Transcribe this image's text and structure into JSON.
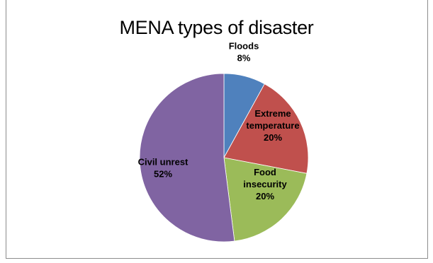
{
  "chart_data": {
    "type": "pie",
    "title": "MENA types of disaster",
    "slices": [
      {
        "label": "Floods",
        "percent_label": "8%",
        "value": 8,
        "color": "#4f81bd",
        "label_color": "#000000"
      },
      {
        "label": "Extreme temperature",
        "label_lines": [
          "Extreme",
          "temperature"
        ],
        "percent_label": "20%",
        "value": 20,
        "color": "#c0504d",
        "label_color": "#000000"
      },
      {
        "label": "Food insecurity",
        "label_lines": [
          "Food",
          "insecurity"
        ],
        "percent_label": "20%",
        "value": 20,
        "color": "#9bbb59",
        "label_color": "#000000"
      },
      {
        "label": "Civil unrest",
        "label_lines": [
          "Civil unrest"
        ],
        "percent_label": "52%",
        "value": 52,
        "color": "#8064a2",
        "label_color": "#000000"
      }
    ]
  }
}
